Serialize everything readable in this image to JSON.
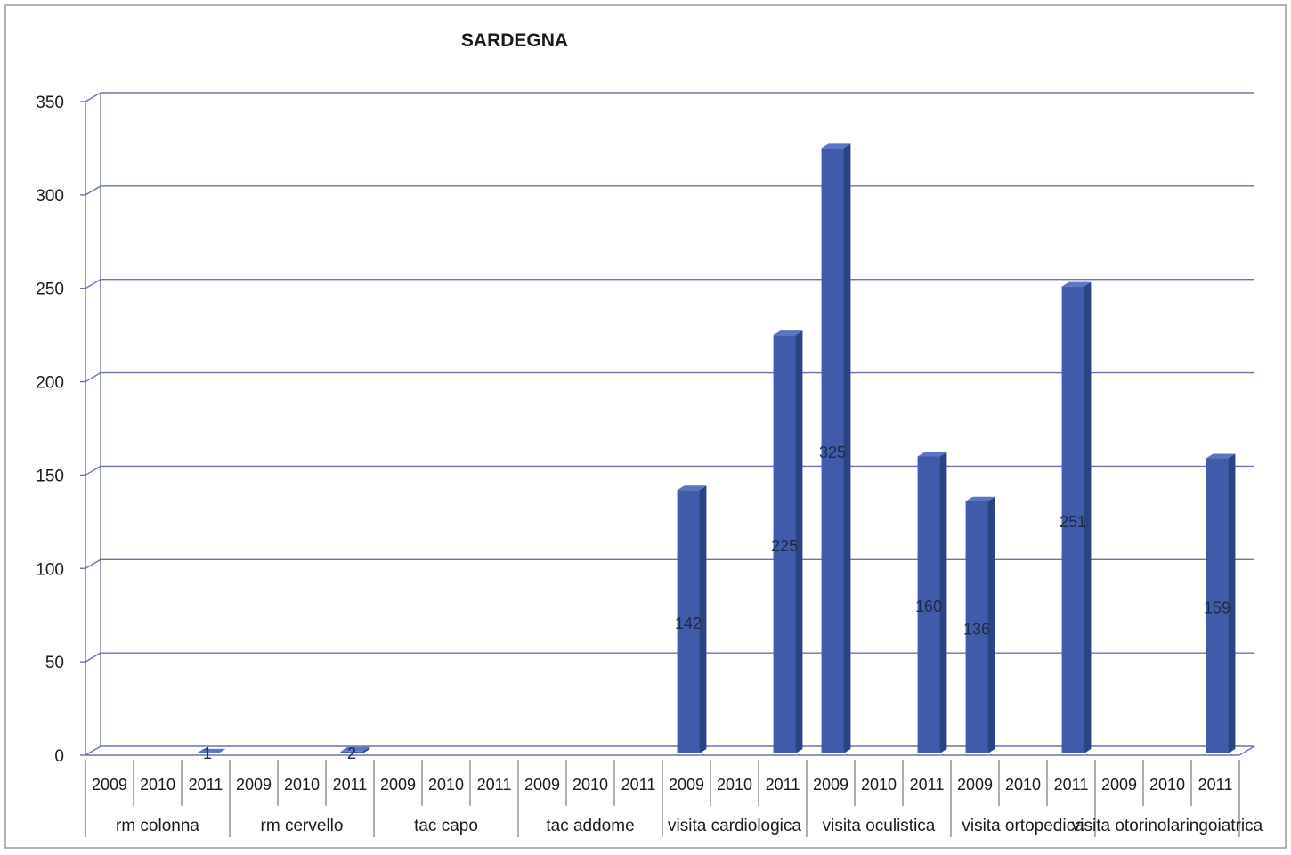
{
  "chart_data": {
    "type": "bar",
    "title": "SARDEGNA",
    "ylim": [
      0,
      350
    ],
    "yticks": [
      "0",
      "50",
      "100",
      "150",
      "200",
      "250",
      "300",
      "350"
    ],
    "grid": true,
    "legend": "none",
    "bar_color": "#3f5ba9",
    "categories": [
      "rm colonna",
      "rm cervello",
      "tac capo",
      "tac addome",
      "visita cardiologica",
      "visita oculistica",
      "visita ortopedica",
      "visita otorinolaringoiatrica"
    ],
    "years": [
      "2009",
      "2010",
      "2011"
    ],
    "values": [
      [
        null,
        null,
        1
      ],
      [
        null,
        null,
        2
      ],
      [
        null,
        null,
        null
      ],
      [
        null,
        null,
        null
      ],
      [
        142,
        null,
        225
      ],
      [
        325,
        null,
        160
      ],
      [
        136,
        null,
        251
      ],
      [
        null,
        null,
        159
      ]
    ],
    "data_labels": [
      [
        "",
        "",
        "1"
      ],
      [
        "",
        "",
        "2"
      ],
      [
        "",
        "",
        ""
      ],
      [
        "",
        "",
        ""
      ],
      [
        "142",
        "",
        "225"
      ],
      [
        "325",
        "",
        "160"
      ],
      [
        "136",
        "",
        "251"
      ],
      [
        "",
        "",
        "159"
      ]
    ]
  }
}
